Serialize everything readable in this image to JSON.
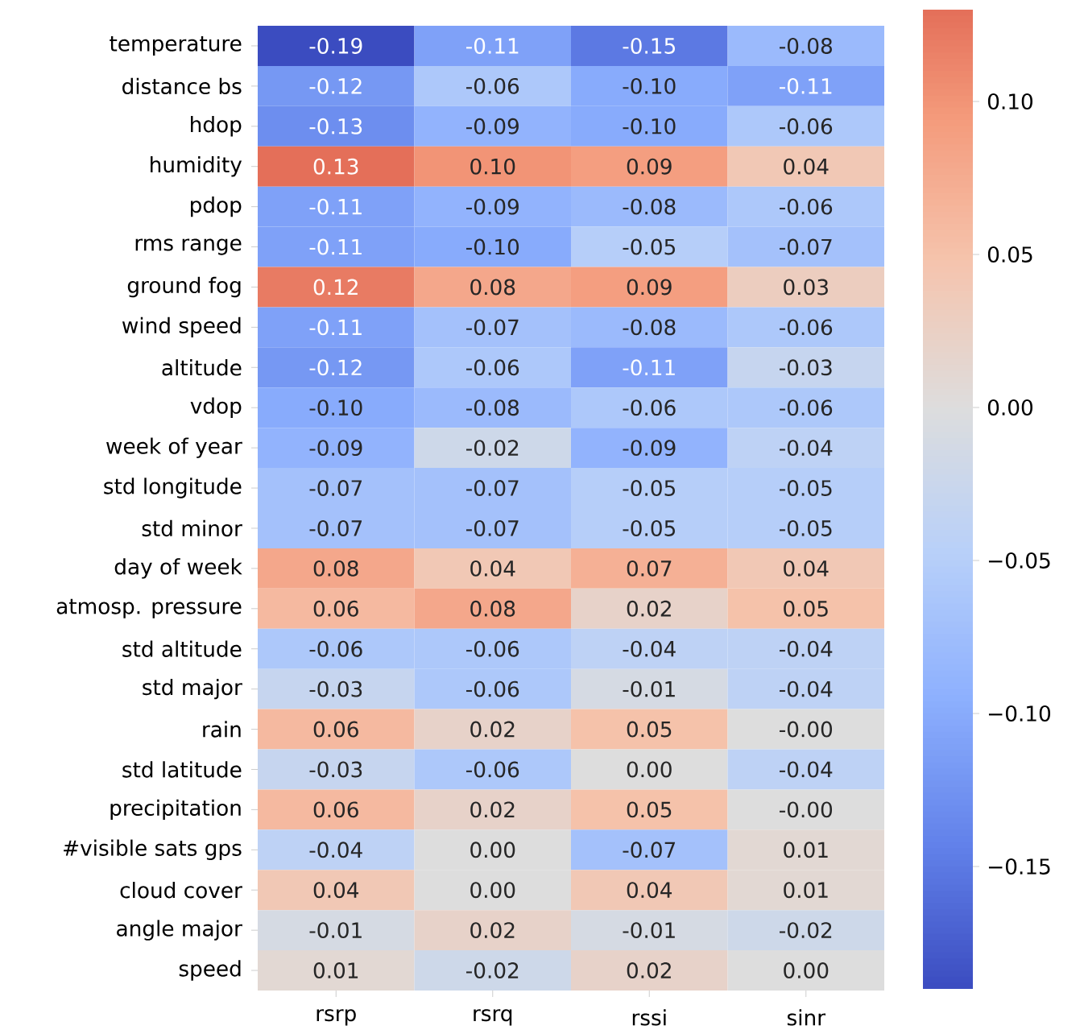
{
  "chart_data": {
    "type": "heatmap",
    "categories": [
      "rsrp",
      "rsrq",
      "rssi",
      "sinr"
    ],
    "y_categories": [
      "temperature",
      "distance bs",
      "hdop",
      "humidity",
      "pdop",
      "rms range",
      "ground fog",
      "wind speed",
      "altitude",
      "vdop",
      "week of year",
      "std longitude",
      "std minor",
      "day of week",
      "atmosp. pressure",
      "std altitude",
      "std major",
      "rain",
      "std latitude",
      "precipitation",
      "#visible sats gps",
      "cloud cover",
      "angle major",
      "speed"
    ],
    "cells": [
      [
        -0.19,
        -0.11,
        -0.15,
        -0.08
      ],
      [
        -0.12,
        -0.06,
        -0.1,
        -0.11
      ],
      [
        -0.13,
        -0.09,
        -0.1,
        -0.06
      ],
      [
        0.13,
        0.1,
        0.09,
        0.04
      ],
      [
        -0.11,
        -0.09,
        -0.08,
        -0.06
      ],
      [
        -0.11,
        -0.1,
        -0.05,
        -0.07
      ],
      [
        0.12,
        0.08,
        0.09,
        0.03
      ],
      [
        -0.11,
        -0.07,
        -0.08,
        -0.06
      ],
      [
        -0.12,
        -0.06,
        -0.11,
        -0.03
      ],
      [
        -0.1,
        -0.08,
        -0.06,
        -0.06
      ],
      [
        -0.09,
        -0.02,
        -0.09,
        -0.04
      ],
      [
        -0.07,
        -0.07,
        -0.05,
        -0.05
      ],
      [
        -0.07,
        -0.07,
        -0.05,
        -0.05
      ],
      [
        0.08,
        0.04,
        0.07,
        0.04
      ],
      [
        0.06,
        0.08,
        0.02,
        0.05
      ],
      [
        -0.06,
        -0.06,
        -0.04,
        -0.04
      ],
      [
        -0.03,
        -0.06,
        -0.01,
        -0.04
      ],
      [
        0.06,
        0.02,
        0.05,
        0
      ],
      [
        -0.03,
        -0.06,
        0,
        -0.04
      ],
      [
        0.06,
        0.02,
        0.05,
        0
      ],
      [
        -0.04,
        0,
        -0.07,
        0.01
      ],
      [
        0.04,
        0,
        0.04,
        0.01
      ],
      [
        -0.01,
        0.02,
        -0.01,
        -0.02
      ],
      [
        0.01,
        -0.02,
        0.02,
        0
      ]
    ],
    "cell_labels": [
      [
        "-0.19",
        "-0.11",
        "-0.15",
        "-0.08"
      ],
      [
        "-0.12",
        "-0.06",
        "-0.10",
        "-0.11"
      ],
      [
        "-0.13",
        "-0.09",
        "-0.10",
        "-0.06"
      ],
      [
        "0.13",
        "0.10",
        "0.09",
        "0.04"
      ],
      [
        "-0.11",
        "-0.09",
        "-0.08",
        "-0.06"
      ],
      [
        "-0.11",
        "-0.10",
        "-0.05",
        "-0.07"
      ],
      [
        "0.12",
        "0.08",
        "0.09",
        "0.03"
      ],
      [
        "-0.11",
        "-0.07",
        "-0.08",
        "-0.06"
      ],
      [
        "-0.12",
        "-0.06",
        "-0.11",
        "-0.03"
      ],
      [
        "-0.10",
        "-0.08",
        "-0.06",
        "-0.06"
      ],
      [
        "-0.09",
        "-0.02",
        "-0.09",
        "-0.04"
      ],
      [
        "-0.07",
        "-0.07",
        "-0.05",
        "-0.05"
      ],
      [
        "-0.07",
        "-0.07",
        "-0.05",
        "-0.05"
      ],
      [
        "0.08",
        "0.04",
        "0.07",
        "0.04"
      ],
      [
        "0.06",
        "0.08",
        "0.02",
        "0.05"
      ],
      [
        "-0.06",
        "-0.06",
        "-0.04",
        "-0.04"
      ],
      [
        "-0.03",
        "-0.06",
        "-0.01",
        "-0.04"
      ],
      [
        "0.06",
        "0.02",
        "0.05",
        "-0.00"
      ],
      [
        "-0.03",
        "-0.06",
        "0.00",
        "-0.04"
      ],
      [
        "0.06",
        "0.02",
        "0.05",
        "-0.00"
      ],
      [
        "-0.04",
        "0.00",
        "-0.07",
        "0.01"
      ],
      [
        "0.04",
        "0.00",
        "0.04",
        "0.01"
      ],
      [
        "-0.01",
        "0.02",
        "-0.01",
        "-0.02"
      ],
      [
        "0.01",
        "-0.02",
        "0.02",
        "0.00"
      ]
    ],
    "clim": [
      -0.19,
      0.13
    ],
    "cticks": [
      {
        "value": -0.15,
        "label": "−0.15"
      },
      {
        "value": -0.1,
        "label": "−0.10"
      },
      {
        "value": -0.05,
        "label": "−0.05"
      },
      {
        "value": 0,
        "label": "0.00"
      },
      {
        "value": 0.05,
        "label": "0.05"
      },
      {
        "value": 0.1,
        "label": "0.10"
      }
    ]
  }
}
